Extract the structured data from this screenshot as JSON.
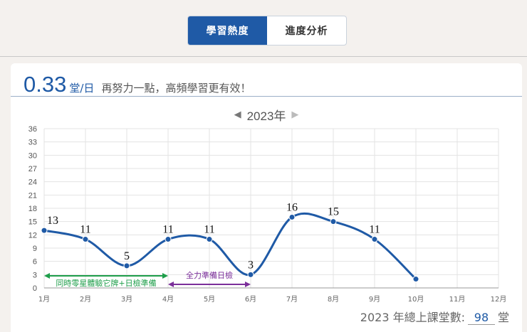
{
  "tabs": [
    {
      "label": "學習熱度",
      "active": true
    },
    {
      "label": "進度分析",
      "active": false
    }
  ],
  "summary": {
    "rate": "0.33",
    "unit_a": "堂",
    "unit_sep": "/",
    "unit_b": "日",
    "message": "再努力一點，高頻學習更有效！"
  },
  "year_nav": {
    "prev_icon": "caret-left-icon",
    "label": "2023年",
    "next_icon": "caret-right-icon"
  },
  "colors": {
    "accent": "#1f5aa6",
    "line": "#1f5aa6",
    "green": "#1e9e4a",
    "purple": "#7b2f9a",
    "grid": "#e3e3e3"
  },
  "chart_data": {
    "type": "line",
    "categories": [
      "1月",
      "2月",
      "3月",
      "4月",
      "5月",
      "6月",
      "7月",
      "8月",
      "9月",
      "10月",
      "11月",
      "12月"
    ],
    "series": [
      {
        "values": [
          13,
          11,
          5,
          11,
          11,
          3,
          16,
          15,
          11,
          2,
          null,
          null
        ]
      }
    ],
    "data_labels": [
      "13",
      "11",
      "5",
      "11",
      "11",
      "3",
      "16",
      "15",
      "11",
      "",
      "",
      ""
    ],
    "ylim": [
      0,
      36
    ],
    "yticks": [
      "0",
      "3",
      "6",
      "9",
      "12",
      "15",
      "18",
      "21",
      "24",
      "27",
      "30",
      "33",
      "36"
    ],
    "grid": true,
    "annotations": [
      {
        "text": "同時零星體驗它牌+日檢準備",
        "from": "1月",
        "to": "4月",
        "color": "green"
      },
      {
        "text": "全力準備日檢",
        "from": "4月",
        "to": "6月",
        "color": "purple"
      }
    ]
  },
  "total": {
    "label": "2023 年總上課堂數:",
    "count": "98",
    "unit": "堂"
  }
}
